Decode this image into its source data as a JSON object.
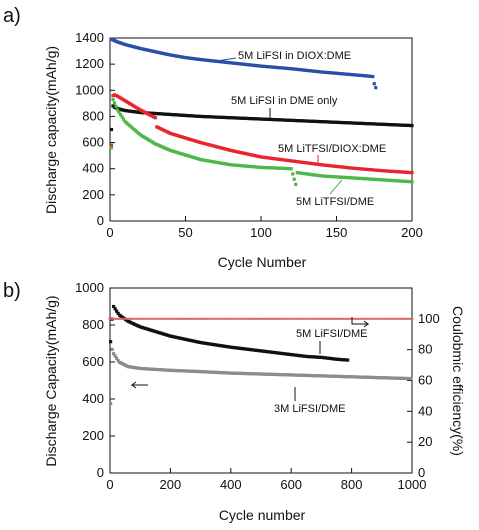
{
  "chart_data": [
    {
      "panel_label": "a)",
      "type": "scatter",
      "xlabel": "Cycle Number",
      "ylabel": "Discharge capacity(mAh/g)",
      "xlim": [
        0,
        200
      ],
      "ylim": [
        0,
        1400
      ],
      "xticks": [
        0,
        50,
        100,
        150,
        200
      ],
      "yticks": [
        0,
        200,
        400,
        600,
        800,
        1000,
        1200,
        1400
      ],
      "grid": false,
      "series": [
        {
          "name": "5M LiFSI in DIOX:DME",
          "color": "#2a4fa8",
          "end_cycle": 176,
          "x": [
            1,
            2,
            5,
            10,
            20,
            30,
            40,
            50,
            60,
            80,
            100,
            120,
            140,
            160,
            170,
            174,
            175,
            176
          ],
          "y": [
            1390,
            1385,
            1370,
            1350,
            1320,
            1295,
            1270,
            1250,
            1235,
            1210,
            1185,
            1165,
            1140,
            1120,
            1110,
            1105,
            1050,
            1020
          ]
        },
        {
          "name": "5M LiFSI in DME only",
          "color": "#111111",
          "end_cycle": 200,
          "x": [
            1,
            2,
            3,
            5,
            10,
            20,
            40,
            60,
            80,
            100,
            120,
            140,
            160,
            180,
            200
          ],
          "y": [
            700,
            880,
            870,
            860,
            845,
            830,
            815,
            800,
            790,
            780,
            770,
            760,
            750,
            740,
            730
          ]
        },
        {
          "name": "5M LiTFSI/DIOX:DME",
          "color": "#e8242e",
          "end_cycle": 200,
          "x": [
            1,
            2,
            3,
            5,
            10,
            20,
            30,
            31,
            40,
            60,
            80,
            100,
            120,
            140,
            160,
            180,
            200
          ],
          "y": [
            580,
            960,
            965,
            955,
            920,
            850,
            790,
            720,
            670,
            600,
            540,
            490,
            460,
            430,
            405,
            385,
            370
          ]
        },
        {
          "name": "5M LiTFSI/DME",
          "color": "#4cb848",
          "end_cycle": 200,
          "x": [
            1,
            2,
            5,
            10,
            20,
            30,
            40,
            60,
            80,
            100,
            120,
            123,
            124,
            140,
            160,
            180,
            200
          ],
          "y": [
            560,
            930,
            850,
            760,
            660,
            590,
            540,
            470,
            430,
            410,
            400,
            280,
            370,
            345,
            330,
            315,
            300
          ]
        }
      ],
      "annotations": [
        {
          "text": "5M LiFSI in DIOX:DME",
          "color": "#2a4fa8"
        },
        {
          "text": "5M LiFSI in DME only",
          "color": "#111111"
        },
        {
          "text": "5M LiTFSI/DIOX:DME",
          "color": "#e8242e"
        },
        {
          "text": "5M LiTFSI/DME",
          "color": "#4cb848"
        }
      ]
    },
    {
      "panel_label": "b)",
      "type": "scatter",
      "xlabel": "Cycle number",
      "ylabel": "Discharge Capacity(mAh/g)",
      "ylabel_right": "Coulobmic efficiency(%)",
      "xlim": [
        0,
        1000
      ],
      "ylim": [
        0,
        1000
      ],
      "ylim_right": [
        0,
        120
      ],
      "xticks": [
        0,
        200,
        400,
        600,
        800,
        1000
      ],
      "yticks": [
        0,
        200,
        400,
        600,
        800,
        1000
      ],
      "yticks_right": [
        0,
        20,
        40,
        60,
        80,
        100
      ],
      "grid": false,
      "series": [
        {
          "name": "5M LiFSI/DME",
          "color": "#111111",
          "axis": "left",
          "end_cycle": 790,
          "x": [
            2,
            10,
            30,
            60,
            100,
            150,
            200,
            300,
            400,
            500,
            550,
            600,
            650,
            700,
            750,
            790
          ],
          "y": [
            710,
            905,
            855,
            820,
            790,
            765,
            740,
            705,
            680,
            660,
            650,
            640,
            630,
            625,
            615,
            610
          ]
        },
        {
          "name": "3M LiFSI/DME",
          "color": "#8c8c8c",
          "axis": "left",
          "end_cycle": 1000,
          "x": [
            2,
            5,
            10,
            30,
            60,
            100,
            150,
            200,
            300,
            400,
            500,
            600,
            700,
            800,
            900,
            1000
          ],
          "y": [
            375,
            680,
            650,
            600,
            575,
            565,
            560,
            555,
            548,
            540,
            535,
            530,
            525,
            520,
            515,
            510
          ]
        },
        {
          "name": "Coulombic efficiency",
          "color": "#d9646b",
          "axis": "right",
          "end_cycle": 1000,
          "x": [
            0,
            100,
            200,
            300,
            400,
            500,
            600,
            700,
            800,
            900,
            1000
          ],
          "y": [
            100,
            100,
            100,
            100,
            100,
            100,
            100,
            100,
            100,
            100,
            100
          ]
        }
      ],
      "annotations": [
        {
          "text": "5M LiFSI/DME",
          "color": "#111111"
        },
        {
          "text": "3M LiFSI/DME",
          "color": "#111111"
        }
      ]
    }
  ]
}
